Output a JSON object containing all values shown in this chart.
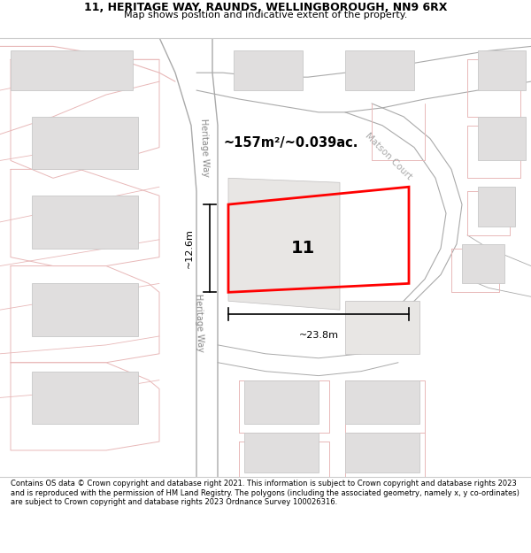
{
  "title": "11, HERITAGE WAY, RAUNDS, WELLINGBOROUGH, NN9 6RX",
  "subtitle": "Map shows position and indicative extent of the property.",
  "footer": "Contains OS data © Crown copyright and database right 2021. This information is subject to Crown copyright and database rights 2023 and is reproduced with the permission of HM Land Registry. The polygons (including the associated geometry, namely x, y co-ordinates) are subject to Crown copyright and database rights 2023 Ordnance Survey 100026316.",
  "map_bg": "#f2f0ef",
  "road_line_color": "#e8b8b8",
  "building_fill": "#e0dede",
  "building_edge": "#c8c8c8",
  "plot_color": "#ff0000",
  "area_text": "~157m²/~0.039ac.",
  "number_text": "11",
  "dim_h_text": "~12.6m",
  "dim_w_text": "~23.8m",
  "street_name_upper": "Heritage Way",
  "street_name_lower": "Heritage Way",
  "street_name_matson": "Matson Court",
  "title_fontsize": 9,
  "subtitle_fontsize": 8,
  "footer_fontsize": 6.0
}
